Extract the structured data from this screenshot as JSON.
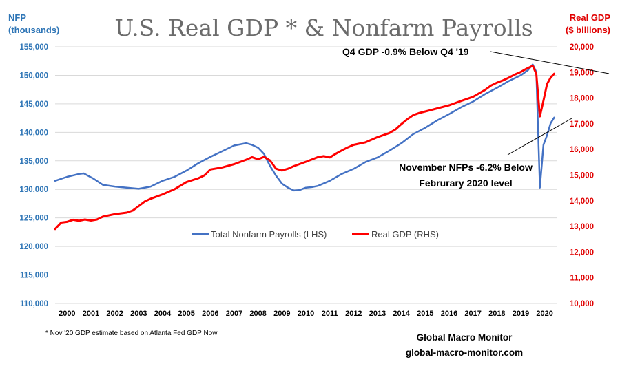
{
  "chart_data": {
    "type": "line",
    "title": "U.S. Real GDP * & Nonfarm Payrolls",
    "left_axis": {
      "label_line1": "NFP",
      "label_line2": "(thousands)",
      "ylim": [
        110000,
        155000
      ],
      "ticks": [
        "110,000",
        "115,000",
        "120,000",
        "125,000",
        "130,000",
        "135,000",
        "140,000",
        "145,000",
        "150,000",
        "155,000"
      ]
    },
    "right_axis": {
      "label_line1": "Real GDP",
      "label_line2": "($ billions)",
      "ylim": [
        10000,
        20000
      ],
      "ticks": [
        "10,000",
        "11,000",
        "12,000",
        "13,000",
        "14,000",
        "15,000",
        "16,000",
        "17,000",
        "18,000",
        "19,000",
        "20,000"
      ]
    },
    "x_ticks": [
      "2000",
      "2001",
      "2002",
      "2003",
      "2004",
      "2005",
      "2006",
      "2007",
      "2008",
      "2009",
      "2010",
      "2011",
      "2012",
      "2013",
      "2014",
      "2015",
      "2016",
      "2017",
      "2018",
      "2019",
      "2020"
    ],
    "grid": true,
    "legend_position": "middle-center",
    "series": [
      {
        "name": "Total Nonfarm Payrolls (LHS)",
        "axis": "left",
        "color": "#4472c4",
        "points": [
          [
            2000.0,
            131500
          ],
          [
            2000.5,
            132200
          ],
          [
            2001.0,
            132700
          ],
          [
            2001.2,
            132800
          ],
          [
            2001.6,
            131900
          ],
          [
            2002.0,
            130800
          ],
          [
            2002.5,
            130500
          ],
          [
            2003.0,
            130300
          ],
          [
            2003.5,
            130100
          ],
          [
            2004.0,
            130500
          ],
          [
            2004.5,
            131500
          ],
          [
            2005.0,
            132200
          ],
          [
            2005.5,
            133300
          ],
          [
            2006.0,
            134600
          ],
          [
            2006.5,
            135700
          ],
          [
            2007.0,
            136700
          ],
          [
            2007.5,
            137700
          ],
          [
            2008.0,
            138100
          ],
          [
            2008.25,
            137800
          ],
          [
            2008.5,
            137300
          ],
          [
            2008.75,
            136200
          ],
          [
            2009.0,
            134100
          ],
          [
            2009.25,
            132400
          ],
          [
            2009.5,
            131000
          ],
          [
            2009.75,
            130300
          ],
          [
            2010.0,
            129800
          ],
          [
            2010.25,
            129900
          ],
          [
            2010.5,
            130300
          ],
          [
            2010.75,
            130400
          ],
          [
            2011.0,
            130600
          ],
          [
            2011.5,
            131500
          ],
          [
            2012.0,
            132700
          ],
          [
            2012.5,
            133600
          ],
          [
            2013.0,
            134800
          ],
          [
            2013.5,
            135600
          ],
          [
            2014.0,
            136800
          ],
          [
            2014.5,
            138100
          ],
          [
            2015.0,
            139700
          ],
          [
            2015.5,
            140800
          ],
          [
            2016.0,
            142100
          ],
          [
            2016.5,
            143200
          ],
          [
            2017.0,
            144400
          ],
          [
            2017.5,
            145400
          ],
          [
            2018.0,
            146700
          ],
          [
            2018.5,
            147800
          ],
          [
            2019.0,
            149000
          ],
          [
            2019.5,
            150000
          ],
          [
            2019.8,
            150900
          ],
          [
            2020.0,
            151900
          ],
          [
            2020.15,
            150600
          ],
          [
            2020.3,
            130300
          ],
          [
            2020.45,
            137800
          ],
          [
            2020.6,
            139500
          ],
          [
            2020.75,
            141600
          ],
          [
            2020.9,
            142600
          ]
        ]
      },
      {
        "name": "Real GDP (RHS)",
        "axis": "right",
        "color": "#ff0000",
        "points": [
          [
            2000.0,
            12900
          ],
          [
            2000.25,
            13150
          ],
          [
            2000.5,
            13180
          ],
          [
            2000.75,
            13260
          ],
          [
            2001.0,
            13220
          ],
          [
            2001.25,
            13270
          ],
          [
            2001.5,
            13230
          ],
          [
            2001.75,
            13270
          ],
          [
            2002.0,
            13380
          ],
          [
            2002.5,
            13480
          ],
          [
            2003.0,
            13540
          ],
          [
            2003.25,
            13620
          ],
          [
            2003.5,
            13790
          ],
          [
            2003.75,
            13970
          ],
          [
            2004.0,
            14080
          ],
          [
            2004.5,
            14250
          ],
          [
            2005.0,
            14450
          ],
          [
            2005.5,
            14730
          ],
          [
            2006.0,
            14880
          ],
          [
            2006.25,
            14990
          ],
          [
            2006.5,
            15220
          ],
          [
            2007.0,
            15300
          ],
          [
            2007.5,
            15430
          ],
          [
            2008.0,
            15600
          ],
          [
            2008.25,
            15700
          ],
          [
            2008.5,
            15620
          ],
          [
            2008.75,
            15710
          ],
          [
            2009.0,
            15570
          ],
          [
            2009.25,
            15250
          ],
          [
            2009.5,
            15180
          ],
          [
            2009.75,
            15250
          ],
          [
            2010.0,
            15350
          ],
          [
            2010.5,
            15520
          ],
          [
            2011.0,
            15700
          ],
          [
            2011.25,
            15740
          ],
          [
            2011.5,
            15690
          ],
          [
            2011.75,
            15830
          ],
          [
            2012.0,
            15960
          ],
          [
            2012.25,
            16080
          ],
          [
            2012.5,
            16180
          ],
          [
            2012.75,
            16230
          ],
          [
            2013.0,
            16280
          ],
          [
            2013.5,
            16480
          ],
          [
            2014.0,
            16640
          ],
          [
            2014.25,
            16780
          ],
          [
            2014.5,
            16990
          ],
          [
            2014.75,
            17180
          ],
          [
            2015.0,
            17340
          ],
          [
            2015.25,
            17420
          ],
          [
            2015.5,
            17480
          ],
          [
            2015.75,
            17540
          ],
          [
            2016.0,
            17600
          ],
          [
            2016.5,
            17720
          ],
          [
            2017.0,
            17890
          ],
          [
            2017.5,
            18050
          ],
          [
            2018.0,
            18320
          ],
          [
            2018.25,
            18490
          ],
          [
            2018.5,
            18600
          ],
          [
            2018.75,
            18690
          ],
          [
            2019.0,
            18800
          ],
          [
            2019.25,
            18920
          ],
          [
            2019.5,
            19020
          ],
          [
            2019.75,
            19150
          ],
          [
            2020.0,
            19260
          ],
          [
            2020.15,
            18950
          ],
          [
            2020.3,
            17290
          ],
          [
            2020.45,
            17900
          ],
          [
            2020.6,
            18550
          ],
          [
            2020.75,
            18800
          ],
          [
            2020.9,
            18950
          ]
        ]
      }
    ],
    "annotations": [
      {
        "id": "gdp-note",
        "text": "Q4 GDP -0.9% Below Q4 '19"
      },
      {
        "id": "nfp-note",
        "line1": "November NFPs -6.2% Below",
        "line2": "Februrary 2020 level"
      }
    ],
    "footnote": "* Nov '20 GDP estimate based on Atlanta Fed GDP Now",
    "brand_line1": "Global Macro Monitor",
    "brand_line2": "global-macro-monitor.com"
  }
}
